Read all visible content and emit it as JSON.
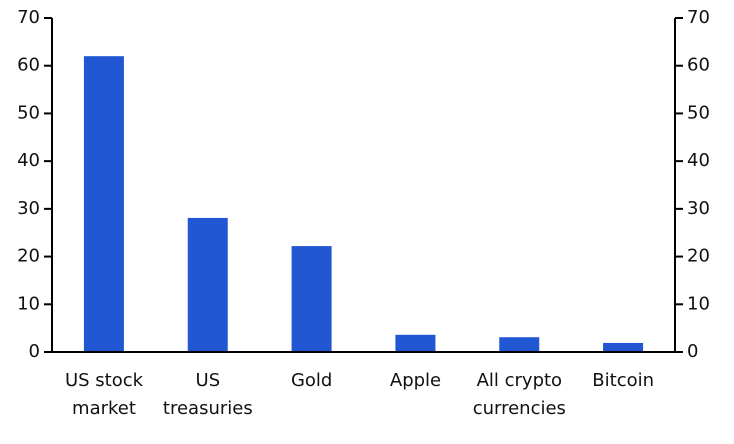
{
  "chart_data": {
    "type": "bar",
    "categories": [
      "US stock market",
      "US treasuries",
      "Gold",
      "Apple",
      "All crypto currencies",
      "Bitcoin"
    ],
    "values": [
      62,
      28.1,
      22.2,
      3.6,
      3.1,
      1.9
    ],
    "color": "#2157d2",
    "ylim": [
      0,
      70
    ],
    "yticks": [
      0,
      10,
      20,
      30,
      40,
      50,
      60,
      70
    ],
    "y2lim": [
      0,
      70
    ],
    "y2ticks": [
      0,
      10,
      20,
      30,
      40,
      50,
      60,
      70
    ],
    "grid": false
  }
}
